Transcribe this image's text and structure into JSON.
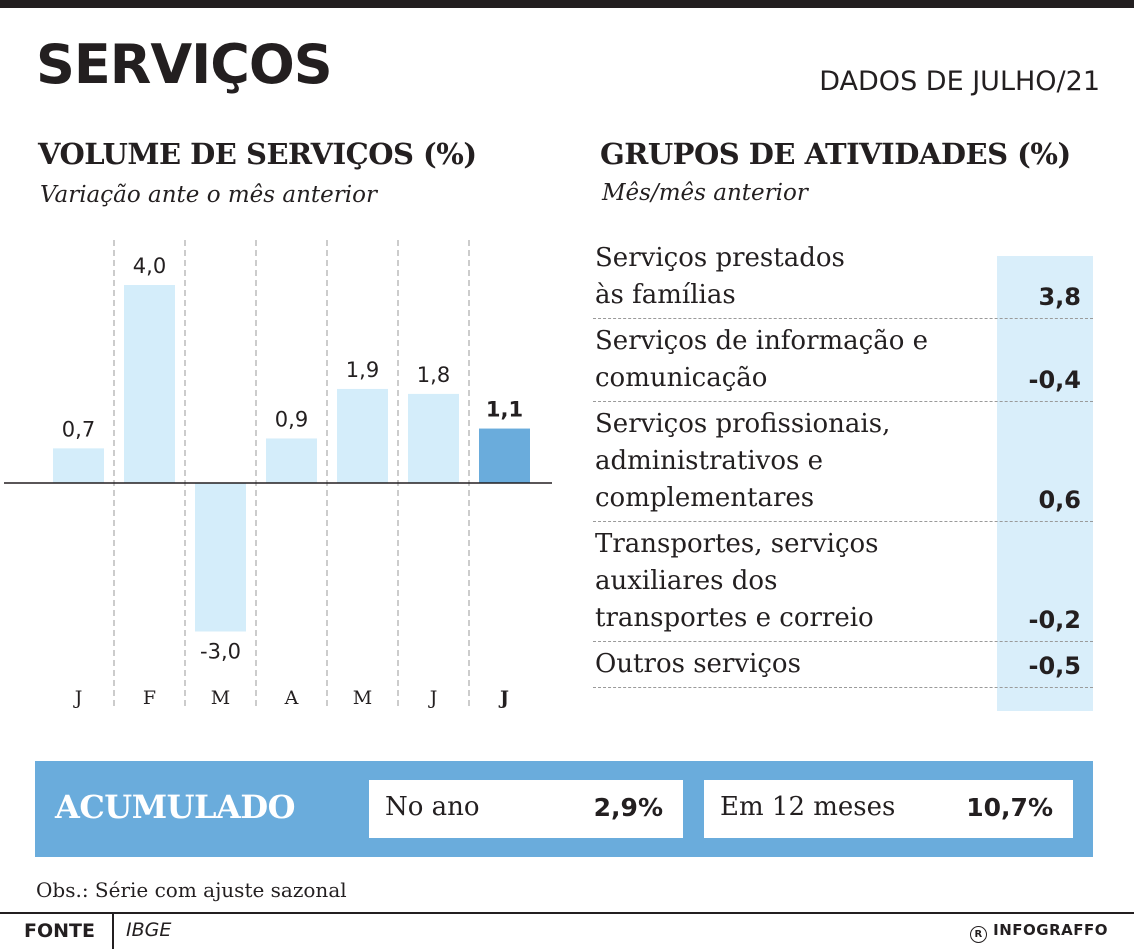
{
  "header": {
    "title": "SERVIÇOS",
    "date": "DADOS DE JULHO/21"
  },
  "volume": {
    "title": "VOLUME DE SERVIÇOS (%)",
    "subtitle": "Variação ante o mês anterior"
  },
  "grupos": {
    "title": "GRUPOS DE ATIVIDADES (%)",
    "subtitle": "Mês/mês anterior",
    "rows": [
      {
        "label": [
          "Serviços prestados",
          "às famílias"
        ],
        "value": "3,8"
      },
      {
        "label": [
          "Serviços de informação e",
          "comunicação"
        ],
        "value": "-0,4"
      },
      {
        "label": [
          "Serviços profissionais,",
          "administrativos e",
          "complementares"
        ],
        "value": "0,6"
      },
      {
        "label": [
          "Transportes, serviços",
          "auxiliares dos",
          "transportes e correio"
        ],
        "value": "-0,2"
      },
      {
        "label": [
          "Outros serviços"
        ],
        "value": "-0,5"
      }
    ]
  },
  "chart_data": {
    "type": "bar",
    "title": "VOLUME DE SERVIÇOS (%)",
    "subtitle": "Variação ante o mês anterior",
    "categories": [
      "J",
      "F",
      "M",
      "A",
      "M",
      "J",
      "J"
    ],
    "values": [
      0.7,
      4.0,
      -3.0,
      0.9,
      1.9,
      1.8,
      1.1
    ],
    "value_labels": [
      "0,7",
      "4,0",
      "-3,0",
      "0,9",
      "1,9",
      "1,8",
      "1,1"
    ],
    "highlight_index": 6,
    "colors": {
      "bar": "#d4edfa",
      "highlight": "#6aacdc",
      "axis": "#231f20",
      "grid": "#9a9a9a"
    },
    "ylim": [
      -3.0,
      4.0
    ],
    "grid": true
  },
  "acumulado": {
    "title": "ACUMULADO",
    "items": [
      {
        "label": "No ano",
        "value": "2,9%"
      },
      {
        "label": "Em 12 meses",
        "value": "10,7%"
      }
    ]
  },
  "obs": "Obs.: Série com ajuste sazonal",
  "footer": {
    "fonte_label": "FONTE",
    "fonte_value": "IBGE",
    "brand": "INFOGRAFFO",
    "brand_symbol": "R"
  }
}
